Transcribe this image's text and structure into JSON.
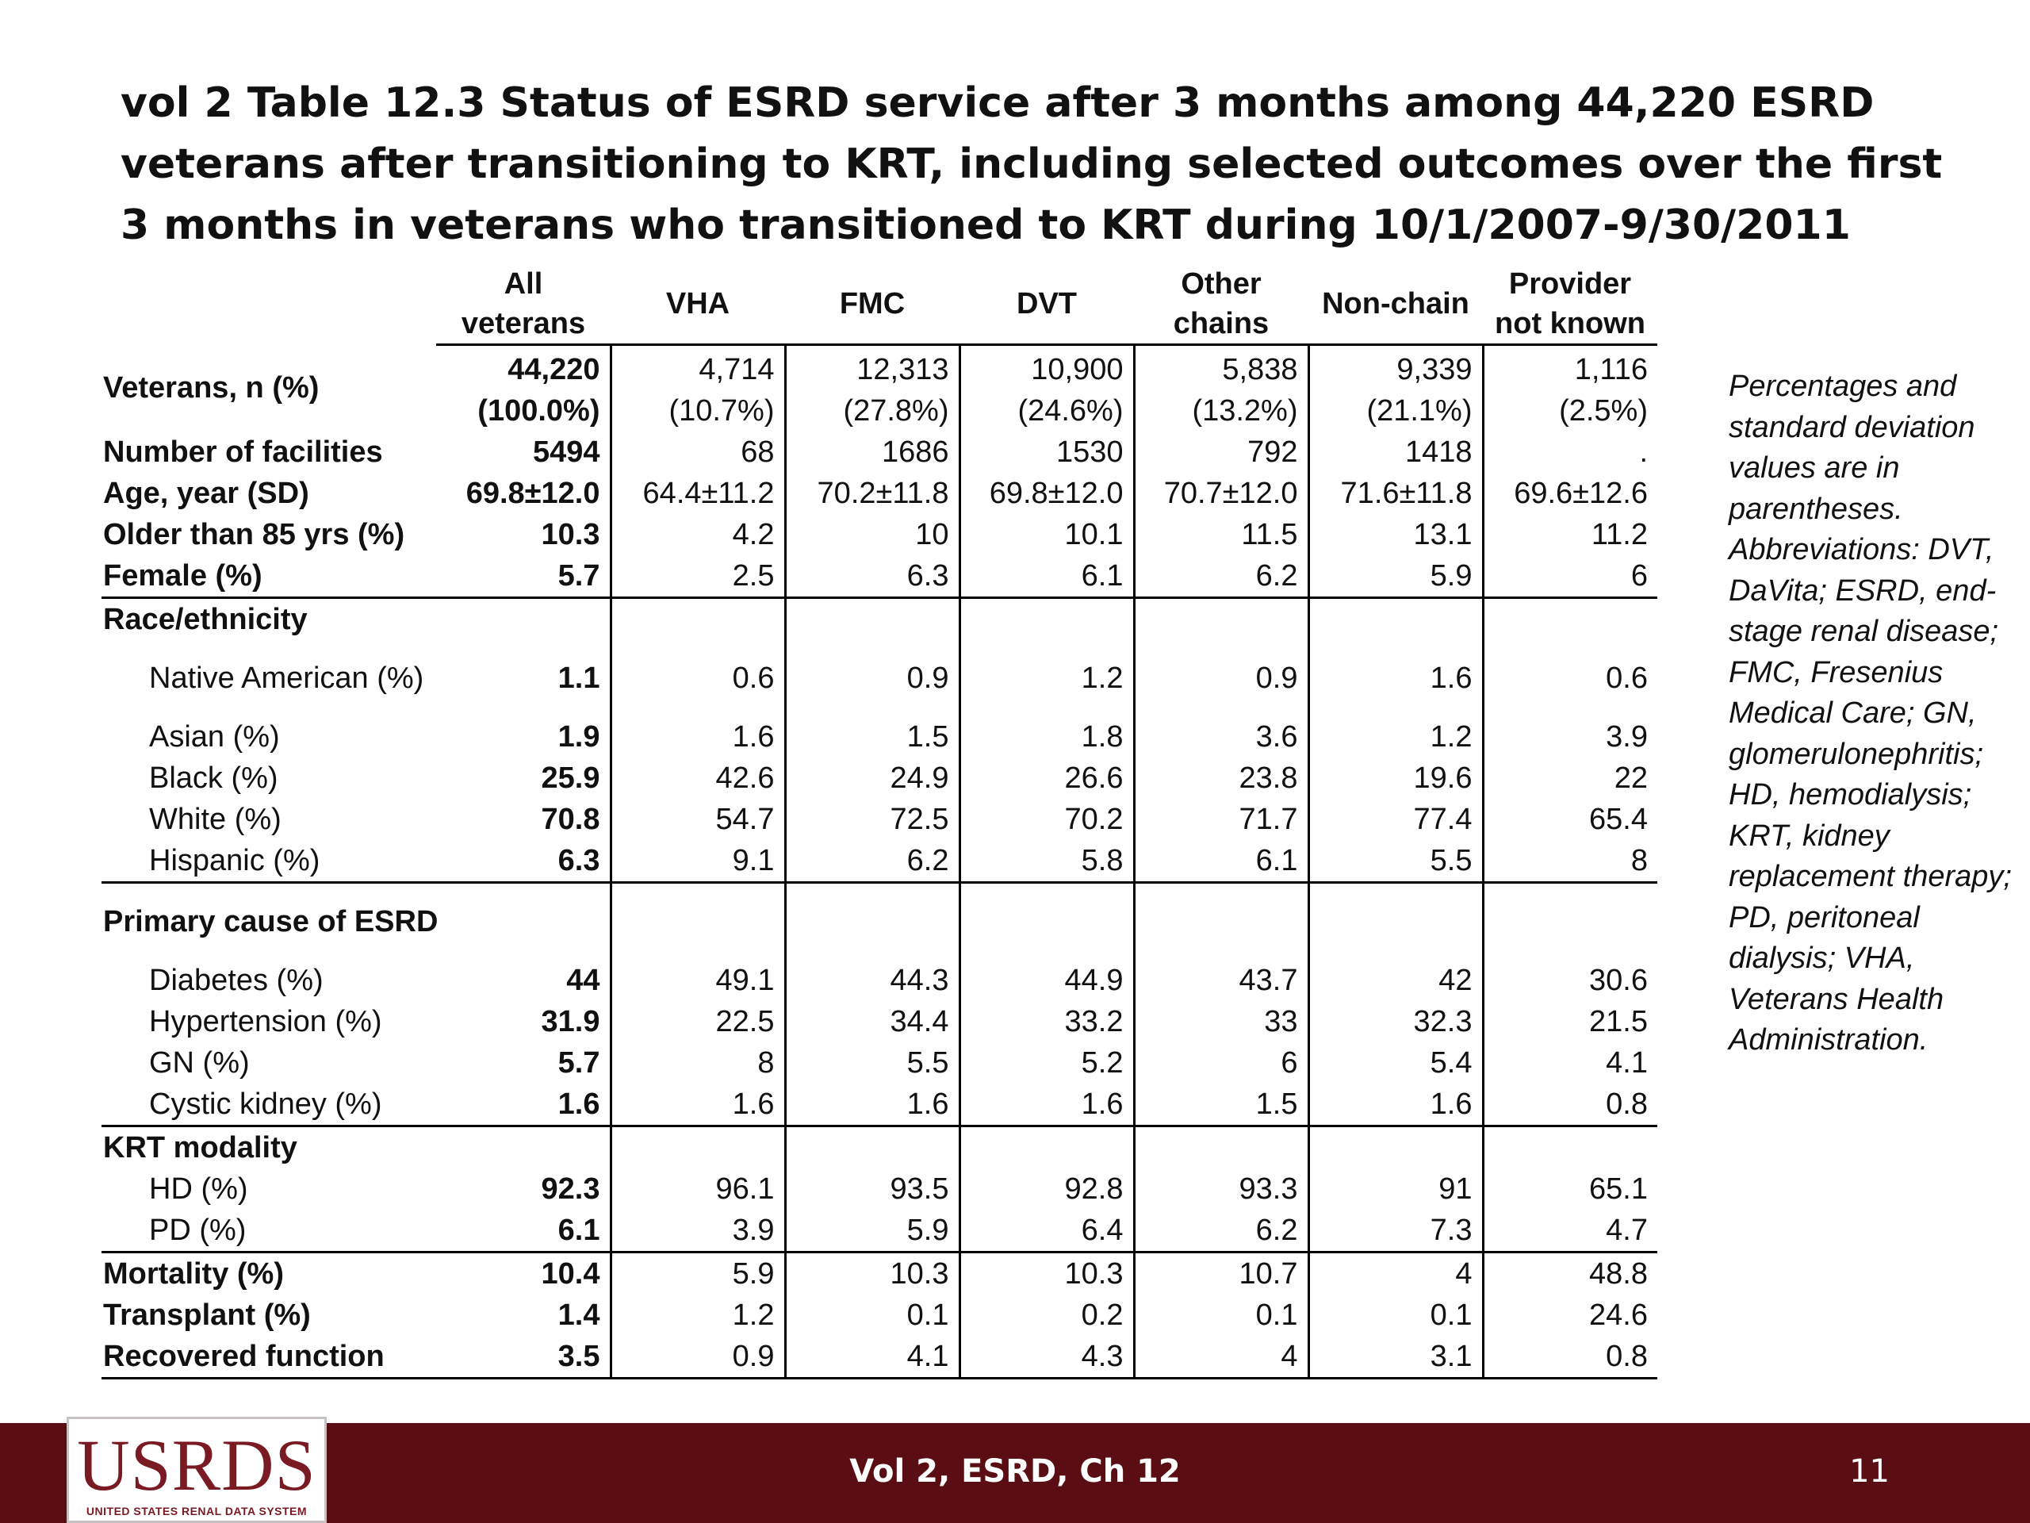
{
  "title": "vol 2 Table 12.3  Status of ESRD service after 3 months among 44,220 ESRD veterans after transitioning to KRT, including selected outcomes over the first 3 months in veterans who transitioned to KRT during 10/1/2007-9/30/2011",
  "table": {
    "columns": [
      "All veterans",
      "VHA",
      "FMC",
      "DVT",
      "Other\nchains",
      "Non-chain",
      "Provider\nnot known"
    ],
    "rows": {
      "veterans_label": "Veterans, n (%)",
      "veterans_n": [
        "44,220",
        "4,714",
        "12,313",
        "10,900",
        "5,838",
        "9,339",
        "1,116"
      ],
      "veterans_pct": [
        "(100.0%)",
        "(10.7%)",
        "(27.8%)",
        "(24.6%)",
        "(13.2%)",
        "(21.1%)",
        "(2.5%)"
      ],
      "facilities": {
        "label": "Number of facilities",
        "values": [
          "5494",
          "68",
          "1686",
          "1530",
          "792",
          "1418",
          "."
        ]
      },
      "age": {
        "label": "Age, year (SD)",
        "values": [
          "69.8±12.0",
          "64.4±11.2",
          "70.2±11.8",
          "69.8±12.0",
          "70.7±12.0",
          "71.6±11.8",
          "69.6±12.6"
        ]
      },
      "older85": {
        "label": "Older than 85 yrs (%)",
        "values": [
          "10.3",
          "4.2",
          "10",
          "10.1",
          "11.5",
          "13.1",
          "11.2"
        ]
      },
      "female": {
        "label": "Female (%)",
        "values": [
          "5.7",
          "2.5",
          "6.3",
          "6.1",
          "6.2",
          "5.9",
          "6"
        ]
      },
      "race_header": "Race/ethnicity",
      "native_american": {
        "label": "Native American (%)",
        "values": [
          "1.1",
          "0.6",
          "0.9",
          "1.2",
          "0.9",
          "1.6",
          "0.6"
        ]
      },
      "asian": {
        "label": "Asian (%)",
        "values": [
          "1.9",
          "1.6",
          "1.5",
          "1.8",
          "3.6",
          "1.2",
          "3.9"
        ]
      },
      "black": {
        "label": "Black (%)",
        "values": [
          "25.9",
          "42.6",
          "24.9",
          "26.6",
          "23.8",
          "19.6",
          "22"
        ]
      },
      "white": {
        "label": "White (%)",
        "values": [
          "70.8",
          "54.7",
          "72.5",
          "70.2",
          "71.7",
          "77.4",
          "65.4"
        ]
      },
      "hispanic": {
        "label": "Hispanic (%)",
        "values": [
          "6.3",
          "9.1",
          "6.2",
          "5.8",
          "6.1",
          "5.5",
          "8"
        ]
      },
      "cause_header": "Primary cause of ESRD",
      "diabetes": {
        "label": "Diabetes (%)",
        "values": [
          "44",
          "49.1",
          "44.3",
          "44.9",
          "43.7",
          "42",
          "30.6"
        ]
      },
      "hypertension": {
        "label": "Hypertension (%)",
        "values": [
          "31.9",
          "22.5",
          "34.4",
          "33.2",
          "33",
          "32.3",
          "21.5"
        ]
      },
      "gn": {
        "label": "GN (%)",
        "values": [
          "5.7",
          "8",
          "5.5",
          "5.2",
          "6",
          "5.4",
          "4.1"
        ]
      },
      "cystic": {
        "label": "Cystic kidney (%)",
        "values": [
          "1.6",
          "1.6",
          "1.6",
          "1.6",
          "1.5",
          "1.6",
          "0.8"
        ]
      },
      "modality_header": "KRT modality",
      "hd": {
        "label": "HD (%)",
        "values": [
          "92.3",
          "96.1",
          "93.5",
          "92.8",
          "93.3",
          "91",
          "65.1"
        ]
      },
      "pd": {
        "label": "PD (%)",
        "values": [
          "6.1",
          "3.9",
          "5.9",
          "6.4",
          "6.2",
          "7.3",
          "4.7"
        ]
      },
      "mortality": {
        "label": "Mortality (%)",
        "values": [
          "10.4",
          "5.9",
          "10.3",
          "10.3",
          "10.7",
          "4",
          "48.8"
        ]
      },
      "transplant": {
        "label": "Transplant (%)",
        "values": [
          "1.4",
          "1.2",
          "0.1",
          "0.2",
          "0.1",
          "0.1",
          "24.6"
        ]
      },
      "recovered": {
        "label": "Recovered function",
        "values": [
          "3.5",
          "0.9",
          "4.1",
          "4.3",
          "4",
          "3.1",
          "0.8"
        ]
      }
    }
  },
  "note": "Percentages and standard deviation values are in parentheses. Abbreviations: DVT, DaVita; ESRD, end-stage renal disease; FMC, Fresenius Medical Care; GN, glomerulonephritis; HD, hemodialysis; KRT, kidney replacement therapy; PD, peritoneal dialysis; VHA, Veterans Health Administration.",
  "footer": {
    "label": "Vol 2, ESRD, Ch 12",
    "page": "11",
    "logo_text": "USRDS",
    "logo_subtext": "UNITED STATES RENAL DATA SYSTEM",
    "color": "#5a0e14"
  }
}
